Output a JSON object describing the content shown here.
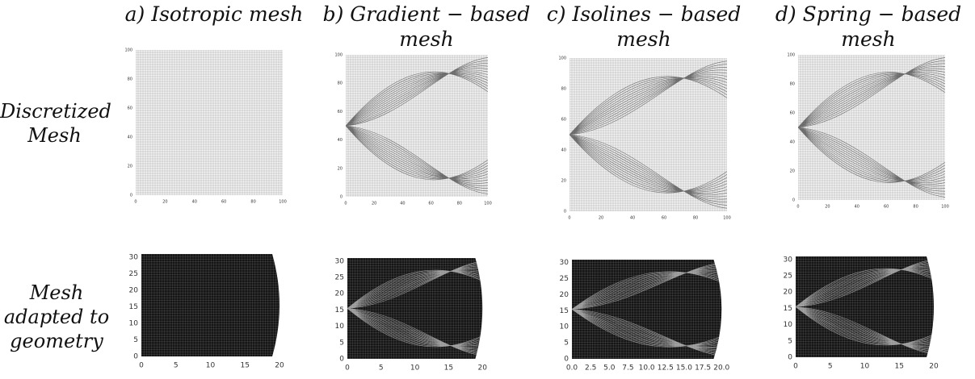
{
  "columns": [
    {
      "title": "a) Isotropic mesh"
    },
    {
      "title": "b) Gradient − based mesh"
    },
    {
      "title": "c) Isolines − based mesh"
    },
    {
      "title": "d) Spring − based mesh"
    }
  ],
  "rows": [
    {
      "label": "Discretized Mesh"
    },
    {
      "label": "Mesh adapted to geometry"
    }
  ],
  "panels": [
    {
      "xticks": [
        "0",
        "20",
        "40",
        "60",
        "80",
        "100"
      ],
      "yticks": [
        "0",
        "20",
        "40",
        "60",
        "80",
        "100"
      ]
    },
    {
      "xticks": [
        "0",
        "20",
        "40",
        "60",
        "80",
        "100"
      ],
      "yticks": [
        "0",
        "20",
        "40",
        "60",
        "80",
        "100"
      ]
    },
    {
      "xticks": [
        "0",
        "20",
        "40",
        "60",
        "80",
        "100"
      ],
      "yticks": [
        "0",
        "20",
        "40",
        "60",
        "80",
        "100"
      ]
    },
    {
      "xticks": [
        "0",
        "20",
        "40",
        "60",
        "80",
        "100"
      ],
      "yticks": [
        "0",
        "20",
        "40",
        "60",
        "80",
        "100"
      ]
    },
    {
      "xticks": [
        "0",
        "5",
        "10",
        "15",
        "20"
      ],
      "yticks": [
        "0",
        "5",
        "10",
        "15",
        "20",
        "25",
        "30"
      ]
    },
    {
      "xticks": [
        "0",
        "5",
        "10",
        "15",
        "20"
      ],
      "yticks": [
        "0",
        "5",
        "10",
        "15",
        "20",
        "25",
        "30"
      ]
    },
    {
      "xticks": [
        "0.0",
        "2.5",
        "5.0",
        "7.5",
        "10.0",
        "12.5",
        "15.0",
        "17.5",
        "20.0"
      ],
      "yticks": [
        "0",
        "5",
        "10",
        "15",
        "20",
        "25",
        "30"
      ]
    },
    {
      "xticks": [
        "0",
        "5",
        "10",
        "15",
        "20"
      ],
      "yticks": [
        "0",
        "5",
        "10",
        "15",
        "20",
        "25",
        "30"
      ]
    }
  ]
}
